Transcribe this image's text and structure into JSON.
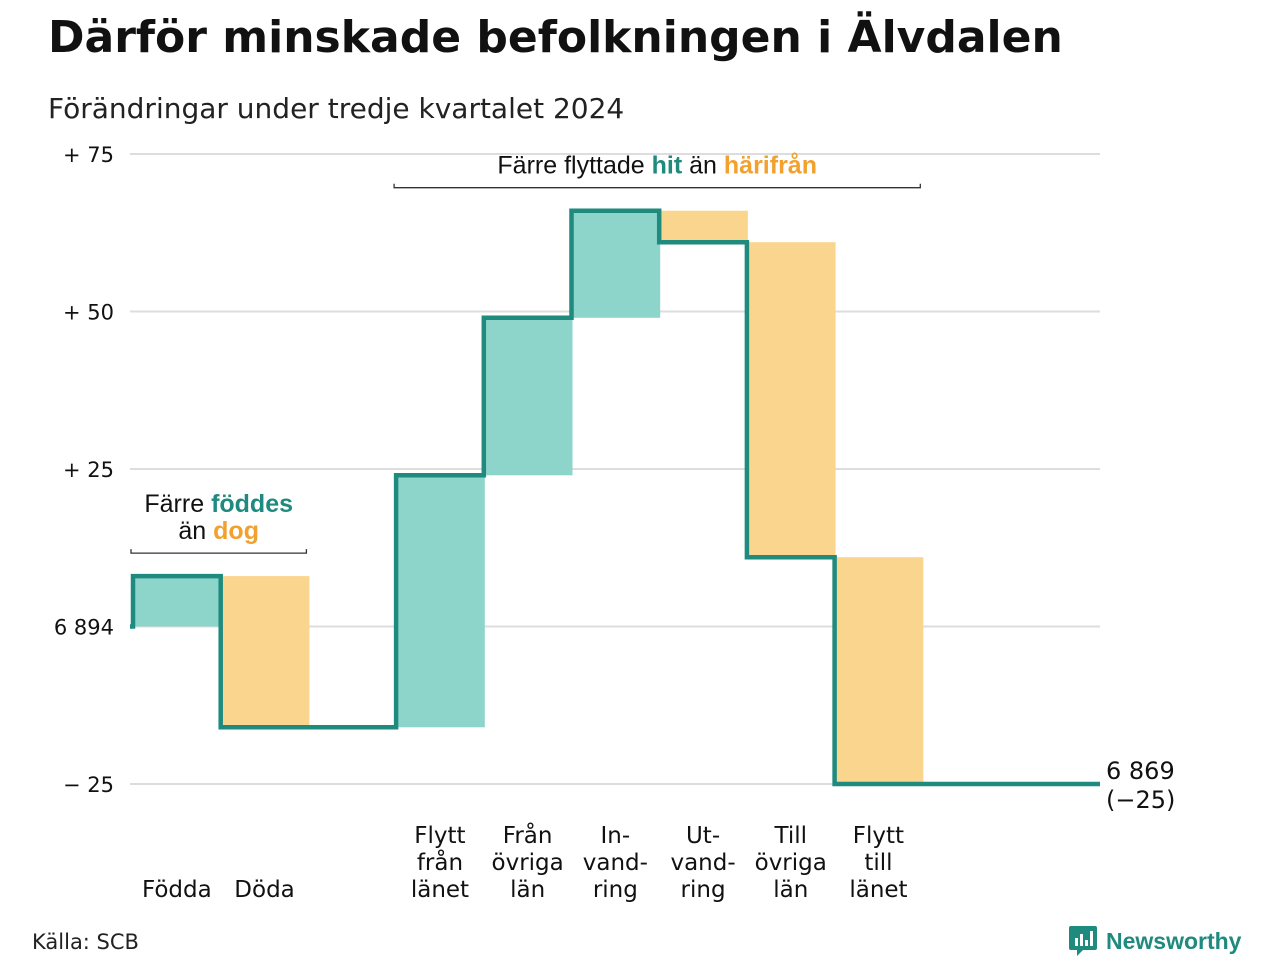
{
  "title": "Därför minskade befolkningen i Älvdalen",
  "subtitle": "Förändringar under tredje kvartalet 2024",
  "source": "Källa: SCB",
  "brand": {
    "name": "Newsworthy",
    "icon": "newsworthy-logo-icon"
  },
  "colors": {
    "increase": "#8dd4cb",
    "decrease": "#fad58e",
    "line": "#1f8a7e",
    "accent_orange": "#f2a12e",
    "grid": "#dddddd"
  },
  "chart_data": {
    "type": "waterfall",
    "title": "Därför minskade befolkningen i Älvdalen",
    "subtitle": "Förändringar under tredje kvartalet 2024",
    "start_value": 6894,
    "end_value": 6869,
    "end_label": "6 869",
    "end_change_label": "(−25)",
    "ylim": [
      -25,
      75
    ],
    "yticks": [
      {
        "value": 75,
        "label": "+ 75"
      },
      {
        "value": 50,
        "label": "+ 50"
      },
      {
        "value": 25,
        "label": "+ 25"
      },
      {
        "value": 0,
        "label": "6 894"
      },
      {
        "value": -25,
        "label": "− 25"
      }
    ],
    "steps": [
      {
        "label_lines": [
          "Födda"
        ],
        "change": 8
      },
      {
        "label_lines": [
          "Döda"
        ],
        "change": -24
      },
      {
        "label_lines": [],
        "change": 0
      },
      {
        "label_lines": [
          "Flytt",
          "från",
          "länet"
        ],
        "change": 40
      },
      {
        "label_lines": [
          "Från",
          "övriga",
          "län"
        ],
        "change": 25
      },
      {
        "label_lines": [
          "In-",
          "vand-",
          "ring"
        ],
        "change": 17
      },
      {
        "label_lines": [
          "Ut-",
          "vand-",
          "ring"
        ],
        "change": -5
      },
      {
        "label_lines": [
          "Till",
          "övriga",
          "län"
        ],
        "change": -50
      },
      {
        "label_lines": [
          "Flytt",
          "till",
          "länet"
        ],
        "change": -36
      },
      {
        "label_lines": [],
        "change": 0
      }
    ],
    "annotations": [
      {
        "from_step": 0,
        "to_step": 1,
        "lines": [
          [
            {
              "text": "Färre ",
              "tone": "plain"
            },
            {
              "text": "föddes",
              "tone": "increase"
            }
          ],
          [
            {
              "text": "än ",
              "tone": "plain"
            },
            {
              "text": "dog",
              "tone": "decrease"
            }
          ]
        ]
      },
      {
        "from_step": 3,
        "to_step": 8,
        "lines": [
          [
            {
              "text": "Färre flyttade ",
              "tone": "plain"
            },
            {
              "text": "hit",
              "tone": "increase"
            },
            {
              "text": " än ",
              "tone": "plain"
            },
            {
              "text": "härifrån",
              "tone": "decrease"
            }
          ]
        ]
      }
    ]
  }
}
